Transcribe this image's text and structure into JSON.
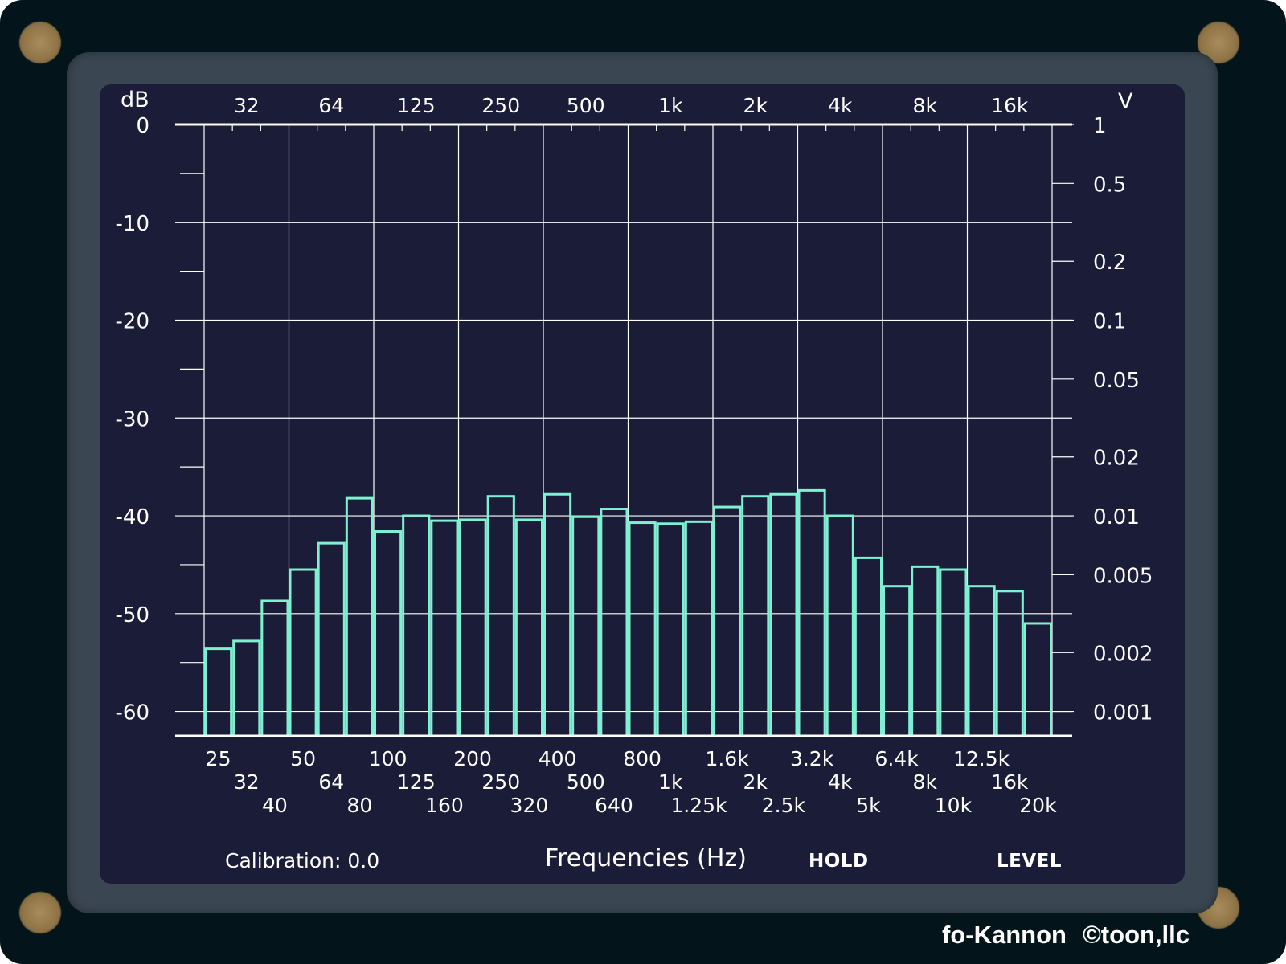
{
  "brand": {
    "app_name": "fo-Kannon",
    "copyright": "©toon,llc"
  },
  "axes": {
    "left_unit": "dB",
    "right_unit": "V",
    "db_ticks": [
      "0",
      "-10",
      "-20",
      "-30",
      "-40",
      "-50",
      "-60"
    ],
    "volt_ticks": [
      "1",
      "0.5",
      "0.2",
      "0.1",
      "0.05",
      "0.02",
      "0.01",
      "0.005",
      "0.002",
      "0.001"
    ],
    "top_freq_labels": [
      "32",
      "64",
      "125",
      "250",
      "500",
      "1k",
      "2k",
      "4k",
      "8k",
      "16k"
    ],
    "bottom_row1": [
      "25",
      "50",
      "100",
      "200",
      "400",
      "800",
      "1.6k",
      "3.2k",
      "6.4k",
      "12.5k"
    ],
    "bottom_row2": [
      "32",
      "64",
      "125",
      "250",
      "500",
      "1k",
      "2k",
      "4k",
      "8k",
      "16k"
    ],
    "bottom_row3": [
      "40",
      "80",
      "160",
      "320",
      "640",
      "1.25k",
      "2.5k",
      "5k",
      "10k",
      "20k"
    ]
  },
  "footer": {
    "calibration": "Calibration: 0.0",
    "x_title": "Frequencies (Hz)",
    "hold_label": "HOLD",
    "level_label": "LEVEL"
  },
  "colors": {
    "bar_outline": "#7ff0d2",
    "screen_bg": "#1b1c37",
    "grid": "#ffffff"
  },
  "chart_data": {
    "type": "bar",
    "title": "",
    "xlabel": "Frequencies (Hz)",
    "ylabel": "dB",
    "y2label": "V",
    "ylim": [
      -62.5,
      0
    ],
    "grid": true,
    "categories": [
      "25",
      "32",
      "40",
      "50",
      "64",
      "80",
      "100",
      "125",
      "160",
      "200",
      "250",
      "320",
      "400",
      "500",
      "640",
      "800",
      "1k",
      "1.25k",
      "1.6k",
      "2k",
      "2.5k",
      "3.2k",
      "4k",
      "5k",
      "6.4k",
      "8k",
      "10k",
      "12.5k",
      "16k",
      "20k"
    ],
    "values": [
      -53.6,
      -52.8,
      -48.7,
      -45.5,
      -42.8,
      -38.2,
      -41.6,
      -40.0,
      -40.5,
      -40.4,
      -38.0,
      -40.4,
      -37.8,
      -40.1,
      -39.3,
      -40.7,
      -40.8,
      -40.6,
      -39.1,
      -38.0,
      -37.8,
      -37.4,
      -40.0,
      -44.3,
      -47.2,
      -45.2,
      -45.5,
      -47.2,
      -47.7,
      -51.0
    ]
  }
}
